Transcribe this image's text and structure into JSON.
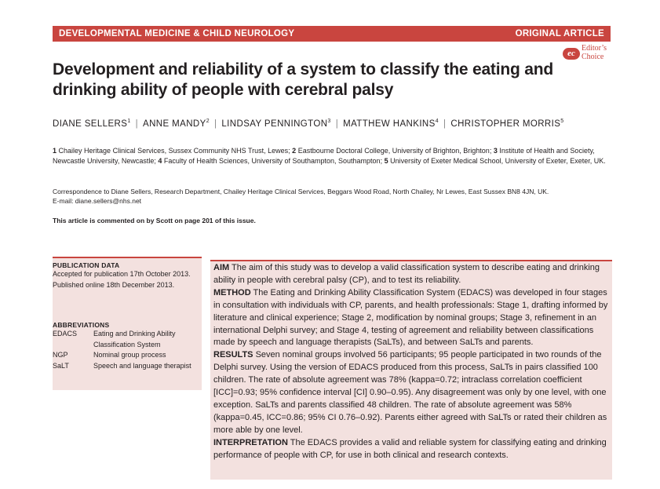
{
  "header": {
    "journal": "DEVELOPMENTAL MEDICINE & CHILD NEUROLOGY",
    "article_type": "ORIGINAL ARTICLE"
  },
  "badge": {
    "logo_text": "ec",
    "line1": "Editor’s",
    "line2": "Choice"
  },
  "title": "Development and reliability of a system to classify the eating and drinking ability of people with cerebral palsy",
  "authors": [
    {
      "name": "DIANE SELLERS",
      "sup": "1"
    },
    {
      "name": "ANNE MANDY",
      "sup": "2"
    },
    {
      "name": "LINDSAY PENNINGTON",
      "sup": "3"
    },
    {
      "name": "MATTHEW HANKINS",
      "sup": "4"
    },
    {
      "name": "CHRISTOPHER MORRIS",
      "sup": "5"
    }
  ],
  "affiliations": [
    {
      "num": "1",
      "text": "Chailey Heritage Clinical Services, Sussex Community NHS Trust, Lewes;"
    },
    {
      "num": "2",
      "text": "Eastbourne Doctoral College, University of Brighton, Brighton;"
    },
    {
      "num": "3",
      "text": "Institute of Health and Society, Newcastle University, Newcastle;"
    },
    {
      "num": "4",
      "text": "Faculty of Health Sciences, University of Southampton, Southampton;"
    },
    {
      "num": "5",
      "text": "University of Exeter Medical School, University of Exeter, Exeter, UK."
    }
  ],
  "correspondence": "Correspondence to Diane Sellers, Research Department, Chailey Heritage Clinical Services, Beggars Wood Road, North Chailey, Nr Lewes, East Sussex BN8 4JN, UK.",
  "email": "E-mail: diane.sellers@nhs.net",
  "comment_note": "This article is commented on by Scott on page 201 of this issue.",
  "publication_data": {
    "heading": "PUBLICATION DATA",
    "accepted": "Accepted for publication 17th October 2013.",
    "published": "Published online 18th December 2013."
  },
  "abbreviations": {
    "heading": "ABBREVIATIONS",
    "items": [
      {
        "abbr": "EDACS",
        "meaning": "Eating and Drinking Ability Classification System"
      },
      {
        "abbr": "NGP",
        "meaning": "Nominal group process"
      },
      {
        "abbr": "SaLT",
        "meaning": "Speech and language therapist"
      }
    ]
  },
  "abstract": [
    {
      "label": "AIM",
      "text": "The aim of this study was to develop a valid classification system to describe eating and drinking ability in people with cerebral palsy (CP), and to test its reliability."
    },
    {
      "label": "METHOD",
      "text": "The Eating and Drinking Ability Classification System (EDACS) was developed in four stages in consultation with individuals with CP, parents, and health professionals: Stage 1, drafting informed by literature and clinical experience; Stage 2, modification by nominal groups; Stage 3, refinement in an international Delphi survey; and Stage 4, testing of agreement and reliability between classifications made by speech and language therapists (SaLTs), and between SaLTs and parents."
    },
    {
      "label": "RESULTS",
      "text": "Seven nominal groups involved 56 participants; 95 people participated in two rounds of the Delphi survey. Using the version of EDACS produced from this process, SaLTs in pairs classified 100 children. The rate of absolute agreement was 78% (kappa=0.72; intraclass correlation coefficient [ICC]=0.93; 95% confidence interval [CI] 0.90–0.95). Any disagreement was only by one level, with one exception. SaLTs and parents classified 48 children. The rate of absolute agreement was 58% (kappa=0.45, ICC=0.86; 95% CI 0.76–0.92). Parents either agreed with SaLTs or rated their children as more able by one level."
    },
    {
      "label": "INTERPRETATION",
      "text": "The EDACS provides a valid and reliable system for classifying eating and drinking performance of people with CP, for use in both clinical and research contexts."
    }
  ]
}
